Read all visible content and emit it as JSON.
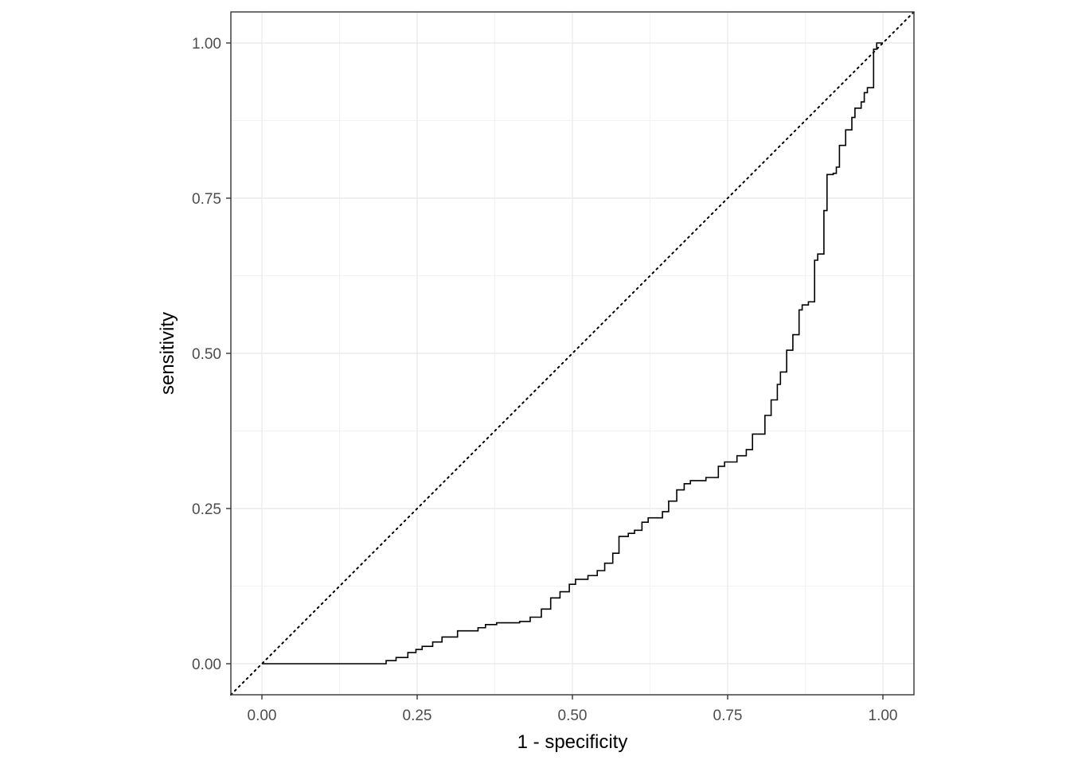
{
  "chart_data": {
    "type": "line",
    "title": "",
    "xlabel": "1 - specificity",
    "ylabel": "sensitivity",
    "xlim": [
      -0.05,
      1.05
    ],
    "ylim": [
      -0.05,
      1.05
    ],
    "x_ticks": [
      0,
      0.25,
      0.5,
      0.75,
      1
    ],
    "y_ticks": [
      0,
      0.25,
      0.5,
      0.75,
      1
    ],
    "x_tick_labels": [
      "0.00",
      "0.25",
      "0.50",
      "0.75",
      "1.00"
    ],
    "y_tick_labels": [
      "0.00",
      "0.25",
      "0.50",
      "0.75",
      "1.00"
    ],
    "grid": true,
    "theme": "bw",
    "series": [
      {
        "step": true,
        "color": "#000000",
        "x": [
          0.0,
          0.2,
          0.216,
          0.235,
          0.248,
          0.258,
          0.275,
          0.29,
          0.315,
          0.348,
          0.36,
          0.378,
          0.415,
          0.432,
          0.45,
          0.465,
          0.48,
          0.495,
          0.505,
          0.525,
          0.54,
          0.552,
          0.565,
          0.575,
          0.59,
          0.6,
          0.612,
          0.622,
          0.645,
          0.655,
          0.668,
          0.68,
          0.69,
          0.715,
          0.735,
          0.745,
          0.765,
          0.78,
          0.79,
          0.81,
          0.82,
          0.83,
          0.835,
          0.845,
          0.855,
          0.865,
          0.87,
          0.88,
          0.89,
          0.895,
          0.905,
          0.91,
          0.92,
          0.925,
          0.93,
          0.94,
          0.95,
          0.955,
          0.965,
          0.97,
          0.975,
          0.985,
          0.99,
          0.995,
          1.0
        ],
        "y": [
          0.0,
          0.005,
          0.01,
          0.018,
          0.023,
          0.028,
          0.035,
          0.043,
          0.053,
          0.058,
          0.063,
          0.066,
          0.068,
          0.075,
          0.088,
          0.106,
          0.116,
          0.128,
          0.136,
          0.142,
          0.15,
          0.162,
          0.178,
          0.205,
          0.21,
          0.215,
          0.228,
          0.235,
          0.245,
          0.262,
          0.28,
          0.29,
          0.295,
          0.3,
          0.318,
          0.325,
          0.335,
          0.345,
          0.37,
          0.4,
          0.425,
          0.45,
          0.47,
          0.505,
          0.53,
          0.57,
          0.578,
          0.583,
          0.65,
          0.66,
          0.73,
          0.788,
          0.79,
          0.8,
          0.835,
          0.86,
          0.88,
          0.895,
          0.905,
          0.92,
          0.928,
          0.99,
          1.0,
          1.0,
          1.0
        ]
      }
    ],
    "reference_line": {
      "type": "dotted",
      "from": [
        0,
        0
      ],
      "to": [
        1,
        1
      ],
      "color": "#000000"
    }
  }
}
